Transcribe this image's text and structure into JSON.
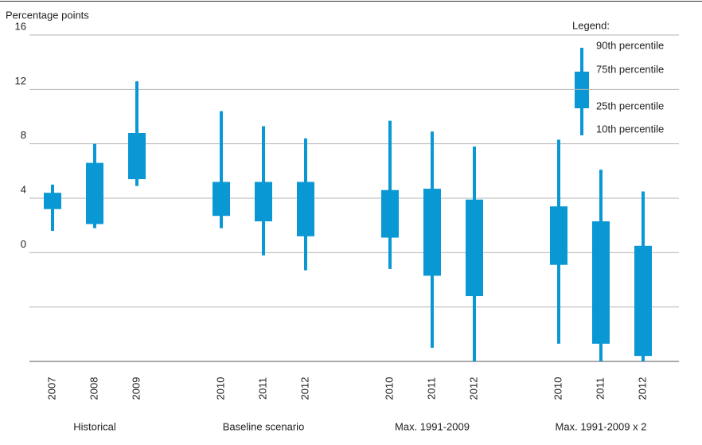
{
  "chart_data": {
    "type": "range",
    "y_label": "Percentage points",
    "color": "#0a98d4",
    "ylim": [
      -8,
      16
    ],
    "yticks": [
      {
        "value": -8,
        "label": null
      },
      {
        "value": -4,
        "label": null
      },
      0,
      4,
      8,
      12,
      16
    ],
    "grid": true,
    "groups": [
      {
        "name": "Historical",
        "categories": [
          "2007",
          "2008",
          "2009"
        ],
        "p10": [
          1.6,
          1.8,
          4.9
        ],
        "p25": [
          3.2,
          2.1,
          5.4
        ],
        "p75": [
          4.4,
          6.6,
          8.8
        ],
        "p90": [
          5.0,
          8.0,
          12.6
        ]
      },
      {
        "name": "Baseline scenario",
        "categories": [
          "2010",
          "2011",
          "2012"
        ],
        "p10": [
          1.8,
          -0.2,
          -1.3
        ],
        "p25": [
          2.7,
          2.3,
          1.2
        ],
        "p75": [
          5.2,
          5.2,
          5.2
        ],
        "p90": [
          10.4,
          9.3,
          8.4
        ]
      },
      {
        "name": "Max. 1991-2009",
        "categories": [
          "2010",
          "2011",
          "2012"
        ],
        "p10": [
          -1.2,
          -7.0,
          -8.0
        ],
        "p25": [
          1.1,
          -1.7,
          -3.2
        ],
        "p75": [
          4.6,
          4.7,
          3.9
        ],
        "p90": [
          9.7,
          8.9,
          7.8
        ]
      },
      {
        "name": "Max. 1991-2009 x 2",
        "categories": [
          "2010",
          "2011",
          "2012"
        ],
        "p10": [
          -6.7,
          -8.0,
          -8.0
        ],
        "p25": [
          -0.9,
          -6.7,
          -7.6
        ],
        "p75": [
          3.4,
          2.3,
          0.5
        ],
        "p90": [
          8.3,
          6.1,
          4.5
        ]
      }
    ],
    "legend": {
      "title": "Legend:",
      "labels": [
        "90th percentile",
        "75th percentile",
        "25th percentile",
        "10th percentile"
      ]
    }
  }
}
